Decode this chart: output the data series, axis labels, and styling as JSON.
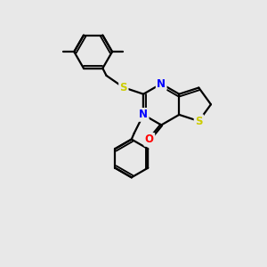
{
  "bg_color": "#e8e8e8",
  "bond_color": "#000000",
  "S_color": "#cccc00",
  "N_color": "#0000ff",
  "O_color": "#ff0000",
  "line_width": 1.6,
  "font_size": 8.5,
  "xlim": [
    0,
    10
  ],
  "ylim": [
    0,
    10
  ]
}
